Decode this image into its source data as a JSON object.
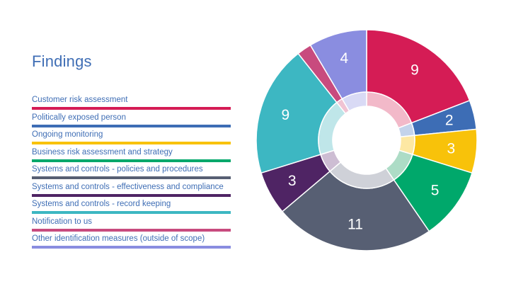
{
  "title": "Findings",
  "chart_data": {
    "type": "pie",
    "title": "Findings",
    "categories": [
      "Customer risk assessment",
      "Politically exposed person",
      "Ongoing monitoring",
      "Business risk assessment and strategy",
      "Systems and controls - policies and procedures",
      "Systems and controls - effectiveness and compliance",
      "Systems and controls - record keeping",
      "Notification to us",
      "Other identification measures (outside of scope)"
    ],
    "values": [
      9,
      2,
      3,
      5,
      11,
      3,
      9,
      1,
      4
    ],
    "data_labels": [
      "9",
      "2",
      "3",
      "5",
      "11",
      "3",
      "9",
      "",
      "4"
    ],
    "colors": [
      "#d51c55",
      "#3d6db5",
      "#f8c20a",
      "#00a86b",
      "#575f73",
      "#4f2464",
      "#3db7c2",
      "#c84b7e",
      "#8a8de0"
    ],
    "inner_colors": [
      "#f2b9c9",
      "#c3d3eb",
      "#fde8a3",
      "#addcc6",
      "#cfd1d8",
      "#cdbdd3",
      "#bfe6e9",
      "#f0c3d3",
      "#d9daf5"
    ],
    "legend_position": "left"
  }
}
